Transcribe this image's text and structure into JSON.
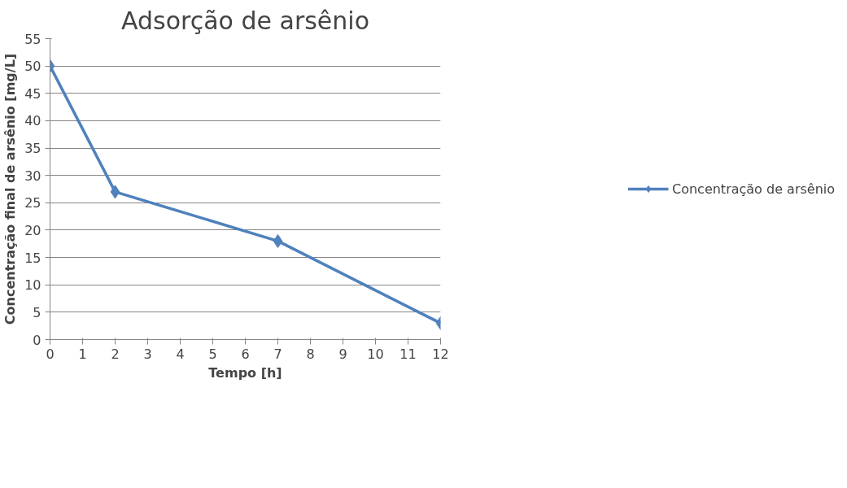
{
  "chart_data": {
    "type": "line",
    "title": "Adsorção de arsênio",
    "xlabel": "Tempo [h]",
    "ylabel": "Concentração final de arsênio [mg/L]",
    "x": [
      0,
      2,
      7,
      12
    ],
    "series": [
      {
        "name": "Concentração de arsênio",
        "color": "#4f81bd",
        "values": [
          50,
          27,
          18,
          3
        ]
      }
    ],
    "xlim": [
      0,
      12
    ],
    "xticks": [
      0,
      1,
      2,
      3,
      4,
      5,
      6,
      7,
      8,
      9,
      10,
      11,
      12
    ],
    "ylim": [
      0,
      55
    ],
    "yticks": [
      0,
      5,
      10,
      15,
      20,
      25,
      30,
      35,
      40,
      45,
      50,
      55
    ],
    "grid": "y",
    "legend": "right",
    "marker": "diamond",
    "line_style": "solid"
  }
}
